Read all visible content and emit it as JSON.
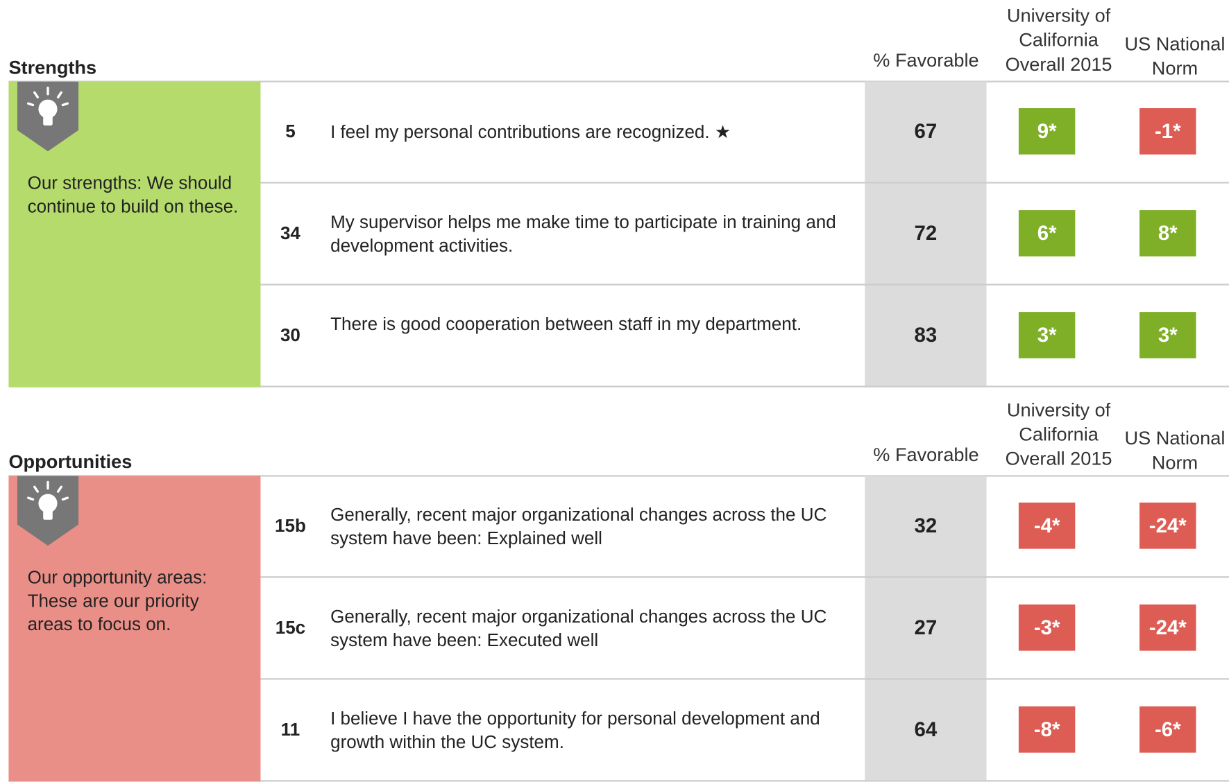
{
  "sections": [
    {
      "title": "Strengths",
      "columns": [
        "% Favorable",
        "University of California Overall 2015",
        "US National Norm"
      ],
      "description": "Our strengths: We should continue to build on these.",
      "rows": [
        {
          "id": "5",
          "text": "I feel my personal contributions are recognized.  ★",
          "favorable": 67,
          "uc": "9*",
          "norm": "-1*"
        },
        {
          "id": "34",
          "text": "My supervisor helps me make time to participate in training and development activities.",
          "favorable": 72,
          "uc": "6*",
          "norm": "8*"
        },
        {
          "id": "30",
          "text": "There is good cooperation between staff in my department.",
          "favorable": 83,
          "uc": "3*",
          "norm": "3*"
        }
      ]
    },
    {
      "title": "Opportunities",
      "columns": [
        "% Favorable",
        "University of California Overall 2015",
        "US National Norm"
      ],
      "description": "Our opportunity areas: These are our priority areas to focus on.",
      "rows": [
        {
          "id": "15b",
          "text": "Generally, recent major organizational changes across the UC system have been: Explained well",
          "favorable": 32,
          "uc": "-4*",
          "norm": "-24*"
        },
        {
          "id": "15c",
          "text": "Generally, recent major organizational changes across the UC system have been: Executed well",
          "favorable": 27,
          "uc": "-3*",
          "norm": "-24*"
        },
        {
          "id": "11",
          "text": "I believe I have the opportunity for personal development and growth within the UC system.",
          "favorable": 64,
          "uc": "-8*",
          "norm": "-6*"
        }
      ]
    }
  ]
}
